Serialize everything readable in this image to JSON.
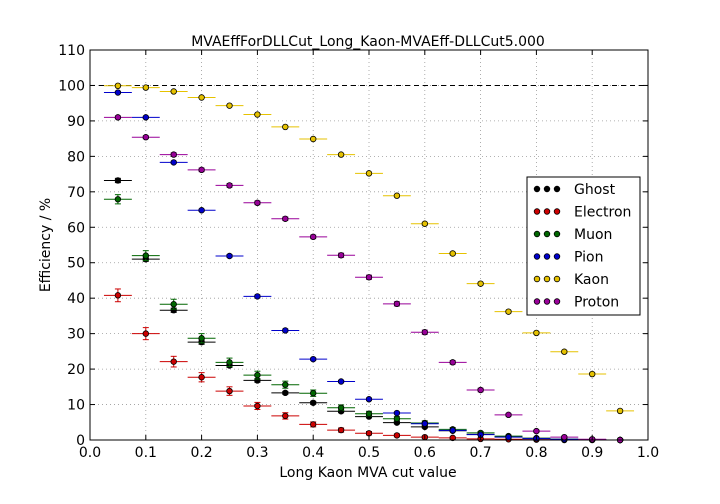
{
  "chart_data": {
    "type": "scatter",
    "title": "MVAEffForDLLCut_Long_Kaon-MVAEff-DLLCut5.000",
    "xlabel": "Long Kaon MVA cut value",
    "ylabel": "Efficiency / %",
    "xlim": [
      0.0,
      1.0
    ],
    "ylim": [
      0,
      110
    ],
    "xticks": [
      "0.0",
      "0.1",
      "0.2",
      "0.3",
      "0.4",
      "0.5",
      "0.6",
      "0.7",
      "0.8",
      "0.9",
      "1.0"
    ],
    "yticks": [
      "0",
      "10",
      "20",
      "30",
      "40",
      "50",
      "60",
      "70",
      "80",
      "90",
      "100",
      "110"
    ],
    "x_bin_halfwidth": 0.025,
    "reference_line": 100,
    "grid": true,
    "legend_position": "right",
    "x": [
      0.05,
      0.1,
      0.15,
      0.2,
      0.25,
      0.3,
      0.35,
      0.4,
      0.45,
      0.5,
      0.55,
      0.6,
      0.65,
      0.7,
      0.75,
      0.8,
      0.85,
      0.9,
      0.95
    ],
    "series": [
      {
        "name": "Ghost",
        "color": "#000000",
        "values": [
          73.2,
          51.0,
          36.6,
          27.6,
          21.0,
          16.8,
          13.3,
          10.5,
          8.1,
          6.6,
          4.9,
          3.7,
          2.6,
          1.6,
          0.9,
          0.5,
          0.2,
          0.1,
          0.0
        ],
        "errors": [
          0.6,
          0.6,
          0.6,
          0.6,
          0.5,
          0.5,
          0.4,
          0.4,
          0.4,
          0.3,
          0.3,
          0.3,
          0.2,
          0.2,
          0.2,
          0.1,
          0.1,
          0.1,
          0.0
        ]
      },
      {
        "name": "Electron",
        "color": "#cc0000",
        "values": [
          40.8,
          30.0,
          22.1,
          17.7,
          13.8,
          9.6,
          6.8,
          4.4,
          2.8,
          1.9,
          1.3,
          0.8,
          0.6,
          0.3,
          0.2,
          0.1,
          0.0,
          0.0,
          0.0
        ],
        "errors": [
          1.8,
          1.7,
          1.5,
          1.3,
          1.2,
          1.0,
          0.9,
          0.7,
          0.6,
          0.5,
          0.4,
          0.3,
          0.3,
          0.2,
          0.2,
          0.1,
          0.0,
          0.0,
          0.0
        ]
      },
      {
        "name": "Muon",
        "color": "#006600",
        "values": [
          67.9,
          52.0,
          38.3,
          28.7,
          21.9,
          18.3,
          15.6,
          13.2,
          9.1,
          7.4,
          6.0,
          4.8,
          3.0,
          2.0,
          1.1,
          0.5,
          0.2,
          0.1,
          0.0
        ],
        "errors": [
          1.3,
          1.4,
          1.4,
          1.3,
          1.2,
          1.1,
          1.0,
          0.9,
          0.8,
          0.7,
          0.6,
          0.6,
          0.5,
          0.4,
          0.3,
          0.2,
          0.1,
          0.1,
          0.0
        ]
      },
      {
        "name": "Pion",
        "color": "#0000cc",
        "values": [
          98.0,
          91.0,
          78.3,
          64.8,
          51.9,
          40.5,
          30.9,
          22.8,
          16.5,
          11.5,
          7.6,
          4.6,
          2.7,
          1.5,
          0.8,
          0.4,
          0.2,
          0.1,
          0.0
        ],
        "errors": [
          0.2,
          0.3,
          0.3,
          0.3,
          0.4,
          0.4,
          0.4,
          0.3,
          0.3,
          0.3,
          0.2,
          0.2,
          0.2,
          0.1,
          0.1,
          0.1,
          0.0,
          0.0,
          0.0
        ]
      },
      {
        "name": "Kaon",
        "color": "#e6c200",
        "values": [
          99.9,
          99.4,
          98.3,
          96.6,
          94.3,
          91.8,
          88.3,
          84.9,
          80.5,
          75.2,
          68.9,
          61.0,
          52.6,
          44.1,
          36.2,
          30.2,
          24.9,
          18.6,
          8.2
        ],
        "errors": [
          0.1,
          0.1,
          0.1,
          0.1,
          0.2,
          0.2,
          0.2,
          0.2,
          0.3,
          0.3,
          0.3,
          0.4,
          0.4,
          0.4,
          0.4,
          0.4,
          0.4,
          0.3,
          0.3
        ]
      },
      {
        "name": "Proton",
        "color": "#990099",
        "values": [
          91.0,
          85.4,
          80.5,
          76.2,
          71.8,
          66.9,
          62.4,
          57.3,
          52.1,
          45.9,
          38.4,
          30.4,
          21.9,
          14.1,
          7.1,
          2.5,
          0.8,
          0.2,
          0.0
        ],
        "errors": [
          0.4,
          0.4,
          0.5,
          0.5,
          0.5,
          0.5,
          0.5,
          0.5,
          0.6,
          0.6,
          0.6,
          0.6,
          0.5,
          0.5,
          0.4,
          0.3,
          0.2,
          0.1,
          0.0
        ]
      }
    ]
  }
}
